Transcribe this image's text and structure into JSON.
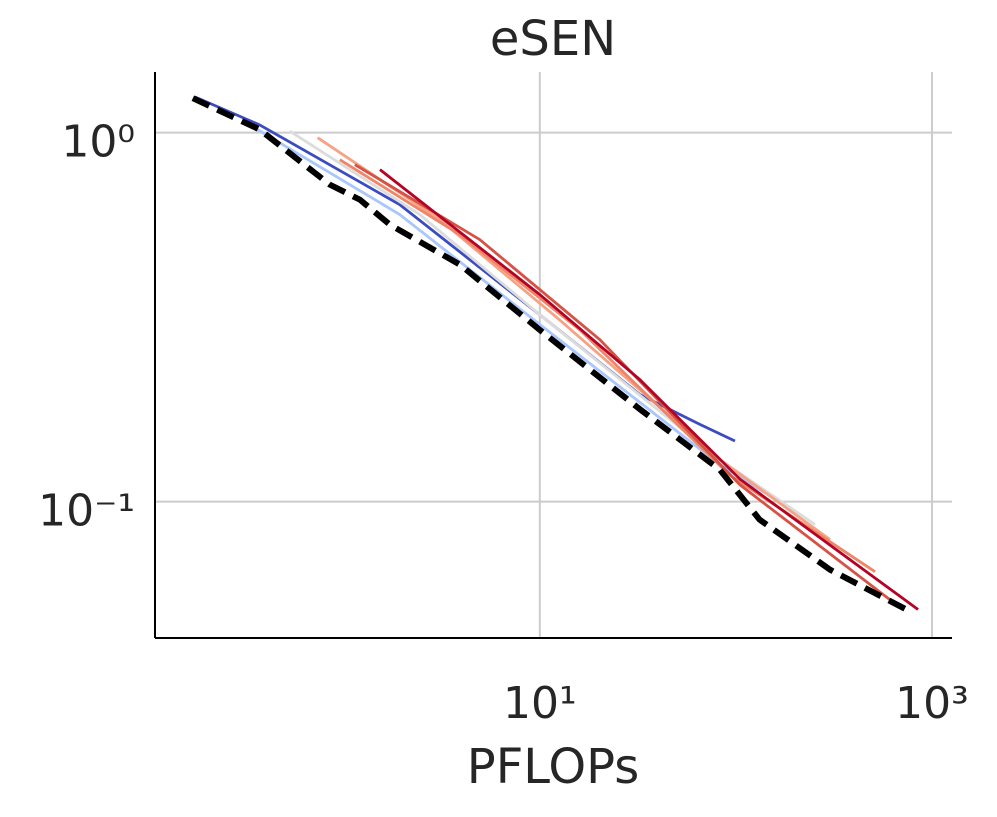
{
  "chart_data": {
    "type": "line",
    "title": "eSEN",
    "xlabel": "PFLOPs",
    "xscale": "log",
    "yscale": "log",
    "grid": true,
    "xlim": [
      0.109,
      1265
    ],
    "ylim": [
      0.0427,
      1.46
    ],
    "xticks": [
      {
        "value": 10,
        "label": "10¹"
      },
      {
        "value": 1000,
        "label": "10³"
      }
    ],
    "yticks": [
      {
        "value": 1,
        "label": "10⁰"
      },
      {
        "value": 0.1,
        "label": "10⁻¹"
      }
    ],
    "series": [
      {
        "color": "#3b4cc0",
        "x": [
          0.174,
          0.372,
          1.93,
          10,
          32.4,
          65.5,
          98.9
        ],
        "values": [
          1.25,
          1.05,
          0.638,
          0.321,
          0.195,
          0.162,
          0.146
        ]
      },
      {
        "color": "#aac7fd",
        "x": [
          0.331,
          1.93,
          10,
          82.8,
          200
        ],
        "values": [
          1.05,
          0.6,
          0.302,
          0.126,
          0.094
        ]
      },
      {
        "color": "#dddcdc",
        "x": [
          0.53,
          2.44,
          10,
          82.8,
          253
        ],
        "values": [
          1.01,
          0.6,
          0.321,
          0.13,
          0.0867
        ]
      },
      {
        "color": "#f6a283",
        "x": [
          0.736,
          3.09,
          12.6,
          82.8,
          302
        ],
        "values": [
          0.969,
          0.581,
          0.311,
          0.13,
          0.0789
        ]
      },
      {
        "color": "#ee8468",
        "x": [
          0.955,
          3.91,
          16.0,
          93.1,
          512
        ],
        "values": [
          0.845,
          0.529,
          0.292,
          0.118,
          0.0646
        ]
      },
      {
        "color": "#d65244",
        "x": [
          1.14,
          4.94,
          20.2,
          105,
          611
        ],
        "values": [
          0.819,
          0.513,
          0.275,
          0.111,
          0.0542
        ]
      },
      {
        "color": "#b40426",
        "x": [
          1.53,
          10,
          32.4,
          105,
          849
        ],
        "values": [
          0.794,
          0.364,
          0.214,
          0.115,
          0.051
        ]
      },
      {
        "color": "#000000",
        "dashed": true,
        "x": [
          0.17,
          0.372,
          0.849,
          1.21,
          1.72,
          3.91,
          10,
          32.4,
          82.8,
          132,
          302,
          773
        ],
        "values": [
          1.24,
          1.02,
          0.723,
          0.658,
          0.563,
          0.439,
          0.292,
          0.178,
          0.122,
          0.0894,
          0.0654,
          0.0504
        ]
      }
    ]
  }
}
